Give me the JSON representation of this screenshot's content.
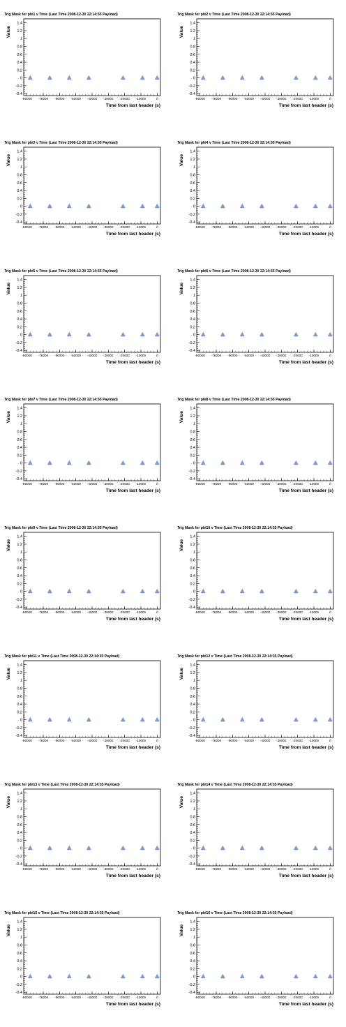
{
  "chart_data": [
    {
      "type": "scatter",
      "title": "Trig Mask for phi1 v Time (Last Time 2008-12-30 22:14:35 Payload)",
      "xlabel": "Time from last header (s)",
      "ylabel": "Value",
      "x": [
        -78000,
        -66000,
        -54000,
        -42000,
        -21000,
        -9000,
        0
      ],
      "y": [
        0,
        0,
        0,
        0,
        0,
        0,
        0
      ],
      "xlim": [
        -82000,
        2000
      ],
      "ylim": [
        -0.45,
        1.5
      ],
      "xticks": [
        "-80000",
        "-70000",
        "-60000",
        "-50000",
        "-40000",
        "-30000",
        "-20000",
        "-10000",
        "0"
      ],
      "yticks": [
        "-0.4",
        "-0.2",
        "0",
        "0.2",
        "0.4",
        "0.6",
        "0.8",
        "1",
        "1.2",
        "1.4"
      ],
      "marker": "triangle",
      "color": "#7f98cf"
    },
    {
      "type": "scatter",
      "title": "Trig Mask for phi2 v Time (Last Time 2008-12-30 22:14:35 Payload)",
      "xlabel": "Time from last header (s)",
      "ylabel": "Value",
      "x": [
        -78000,
        -66000,
        -54000,
        -42000,
        -21000,
        -9000,
        0
      ],
      "y": [
        0,
        0,
        0,
        0,
        0,
        0,
        0
      ],
      "xlim": [
        -82000,
        2000
      ],
      "ylim": [
        -0.45,
        1.5
      ],
      "xticks": [
        "-80000",
        "-70000",
        "-60000",
        "-50000",
        "-40000",
        "-30000",
        "-20000",
        "-10000",
        "0"
      ],
      "yticks": [
        "-0.4",
        "-0.2",
        "0",
        "0.2",
        "0.4",
        "0.6",
        "0.8",
        "1",
        "1.2",
        "1.4"
      ],
      "marker": "triangle",
      "color": "#7f98cf"
    },
    {
      "type": "scatter",
      "title": "Trig Mask for phi3 v Time (Last Time 2008-12-30 22:14:35 Payload)",
      "xlabel": "Time from last header (s)",
      "ylabel": "Value",
      "x": [
        -78000,
        -66000,
        -54000,
        -42000,
        -21000,
        -9000,
        0
      ],
      "y": [
        0,
        0,
        0,
        0,
        0,
        0,
        0
      ],
      "xlim": [
        -82000,
        2000
      ],
      "ylim": [
        -0.45,
        1.5
      ],
      "xticks": [
        "-80000",
        "-70000",
        "-60000",
        "-50000",
        "-40000",
        "-30000",
        "-20000",
        "-10000",
        "0"
      ],
      "yticks": [
        "-0.4",
        "-0.2",
        "0",
        "0.2",
        "0.4",
        "0.6",
        "0.8",
        "1",
        "1.2",
        "1.4"
      ],
      "marker": "triangle",
      "color": "#7f98cf"
    },
    {
      "type": "scatter",
      "title": "Trig Mask for phi4 v Time (Last Time 2008-12-30 22:14:35 Payload)",
      "xlabel": "Time from last header (s)",
      "ylabel": "Value",
      "x": [
        -78000,
        -66000,
        -54000,
        -42000,
        -21000,
        -9000,
        0
      ],
      "y": [
        0,
        0,
        0,
        0,
        0,
        0,
        0
      ],
      "xlim": [
        -82000,
        2000
      ],
      "ylim": [
        -0.45,
        1.5
      ],
      "xticks": [
        "-80000",
        "-70000",
        "-60000",
        "-50000",
        "-40000",
        "-30000",
        "-20000",
        "-10000",
        "0"
      ],
      "yticks": [
        "-0.4",
        "-0.2",
        "0",
        "0.2",
        "0.4",
        "0.6",
        "0.8",
        "1",
        "1.2",
        "1.4"
      ],
      "marker": "triangle",
      "color": "#7f98cf"
    },
    {
      "type": "scatter",
      "title": "Trig Mask for phi5 v Time (Last Time 2008-12-30 22:14:35 Payload)",
      "xlabel": "Time from last header (s)",
      "ylabel": "Value",
      "x": [
        -78000,
        -66000,
        -54000,
        -42000,
        -21000,
        -9000,
        0
      ],
      "y": [
        0,
        0,
        0,
        0,
        0,
        0,
        0
      ],
      "xlim": [
        -82000,
        2000
      ],
      "ylim": [
        -0.45,
        1.5
      ],
      "xticks": [
        "-80000",
        "-70000",
        "-60000",
        "-50000",
        "-40000",
        "-30000",
        "-20000",
        "-10000",
        "0"
      ],
      "yticks": [
        "-0.4",
        "-0.2",
        "0",
        "0.2",
        "0.4",
        "0.6",
        "0.8",
        "1",
        "1.2",
        "1.4"
      ],
      "marker": "triangle",
      "color": "#7f98cf"
    },
    {
      "type": "scatter",
      "title": "Trig Mask for phi6 v Time (Last Time 2008-12-30 22:14:35 Payload)",
      "xlabel": "Time from last header (s)",
      "ylabel": "Value",
      "x": [
        -78000,
        -66000,
        -54000,
        -42000,
        -21000,
        -9000,
        0
      ],
      "y": [
        0,
        0,
        0,
        0,
        0,
        0,
        0
      ],
      "xlim": [
        -82000,
        2000
      ],
      "ylim": [
        -0.45,
        1.5
      ],
      "xticks": [
        "-80000",
        "-70000",
        "-60000",
        "-50000",
        "-40000",
        "-30000",
        "-20000",
        "-10000",
        "0"
      ],
      "yticks": [
        "-0.4",
        "-0.2",
        "0",
        "0.2",
        "0.4",
        "0.6",
        "0.8",
        "1",
        "1.2",
        "1.4"
      ],
      "marker": "triangle",
      "color": "#7f98cf"
    },
    {
      "type": "scatter",
      "title": "Trig Mask for phi7 v Time (Last Time 2008-12-30 22:14:35 Payload)",
      "xlabel": "Time from last header (s)",
      "ylabel": "Value",
      "x": [
        -78000,
        -66000,
        -54000,
        -42000,
        -21000,
        -9000,
        0
      ],
      "y": [
        0,
        0,
        0,
        0,
        0,
        0,
        0
      ],
      "xlim": [
        -82000,
        2000
      ],
      "ylim": [
        -0.45,
        1.5
      ],
      "xticks": [
        "-80000",
        "-70000",
        "-60000",
        "-50000",
        "-40000",
        "-30000",
        "-20000",
        "-10000",
        "0"
      ],
      "yticks": [
        "-0.4",
        "-0.2",
        "0",
        "0.2",
        "0.4",
        "0.6",
        "0.8",
        "1",
        "1.2",
        "1.4"
      ],
      "marker": "triangle",
      "color": "#7f98cf"
    },
    {
      "type": "scatter",
      "title": "Trig Mask for phi8 v Time (Last Time 2008-12-30 22:14:35 Payload)",
      "xlabel": "Time from last header (s)",
      "ylabel": "Value",
      "x": [
        -78000,
        -66000,
        -54000,
        -42000,
        -21000,
        -9000,
        0
      ],
      "y": [
        0,
        0,
        0,
        0,
        0,
        0,
        0
      ],
      "xlim": [
        -82000,
        2000
      ],
      "ylim": [
        -0.45,
        1.5
      ],
      "xticks": [
        "-80000",
        "-70000",
        "-60000",
        "-50000",
        "-40000",
        "-30000",
        "-20000",
        "-10000",
        "0"
      ],
      "yticks": [
        "-0.4",
        "-0.2",
        "0",
        "0.2",
        "0.4",
        "0.6",
        "0.8",
        "1",
        "1.2",
        "1.4"
      ],
      "marker": "triangle",
      "color": "#7f98cf"
    },
    {
      "type": "scatter",
      "title": "Trig Mask for phi9 v Time (Last Time 2008-12-30 22:14:35 Payload)",
      "xlabel": "Time from last header (s)",
      "ylabel": "Value",
      "x": [
        -78000,
        -66000,
        -54000,
        -42000,
        -21000,
        -9000,
        0
      ],
      "y": [
        0,
        0,
        0,
        0,
        0,
        0,
        0
      ],
      "xlim": [
        -82000,
        2000
      ],
      "ylim": [
        -0.45,
        1.5
      ],
      "xticks": [
        "-80000",
        "-70000",
        "-60000",
        "-50000",
        "-40000",
        "-30000",
        "-20000",
        "-10000",
        "0"
      ],
      "yticks": [
        "-0.4",
        "-0.2",
        "0",
        "0.2",
        "0.4",
        "0.6",
        "0.8",
        "1",
        "1.2",
        "1.4"
      ],
      "marker": "triangle",
      "color": "#7f98cf"
    },
    {
      "type": "scatter",
      "title": "Trig Mask for phi10 v Time (Last Time 2008-12-30 22:14:35 Payload)",
      "xlabel": "Time from last header (s)",
      "ylabel": "Value",
      "x": [
        -78000,
        -66000,
        -54000,
        -42000,
        -21000,
        -9000,
        0
      ],
      "y": [
        0,
        0,
        0,
        0,
        0,
        0,
        0
      ],
      "xlim": [
        -82000,
        2000
      ],
      "ylim": [
        -0.45,
        1.5
      ],
      "xticks": [
        "-80000",
        "-70000",
        "-60000",
        "-50000",
        "-40000",
        "-30000",
        "-20000",
        "-10000",
        "0"
      ],
      "yticks": [
        "-0.4",
        "-0.2",
        "0",
        "0.2",
        "0.4",
        "0.6",
        "0.8",
        "1",
        "1.2",
        "1.4"
      ],
      "marker": "triangle",
      "color": "#7f98cf"
    },
    {
      "type": "scatter",
      "title": "Trig Mask for phi11 v Time (Last Time 2008-12-30 22:14:35 Payload)",
      "xlabel": "Time from last header (s)",
      "ylabel": "Value",
      "x": [
        -78000,
        -66000,
        -54000,
        -42000,
        -21000,
        -9000,
        0
      ],
      "y": [
        0,
        0,
        0,
        0,
        0,
        0,
        0
      ],
      "xlim": [
        -82000,
        2000
      ],
      "ylim": [
        -0.45,
        1.5
      ],
      "xticks": [
        "-80000",
        "-70000",
        "-60000",
        "-50000",
        "-40000",
        "-30000",
        "-20000",
        "-10000",
        "0"
      ],
      "yticks": [
        "-0.4",
        "-0.2",
        "0",
        "0.2",
        "0.4",
        "0.6",
        "0.8",
        "1",
        "1.2",
        "1.4"
      ],
      "marker": "triangle",
      "color": "#7f98cf"
    },
    {
      "type": "scatter",
      "title": "Trig Mask for phi12 v Time (Last Time 2008-12-30 22:14:35 Payload)",
      "xlabel": "Time from last header (s)",
      "ylabel": "Value",
      "x": [
        -78000,
        -66000,
        -54000,
        -42000,
        -21000,
        -9000,
        0
      ],
      "y": [
        0,
        0,
        0,
        0,
        0,
        0,
        0
      ],
      "xlim": [
        -82000,
        2000
      ],
      "ylim": [
        -0.45,
        1.5
      ],
      "xticks": [
        "-80000",
        "-70000",
        "-60000",
        "-50000",
        "-40000",
        "-30000",
        "-20000",
        "-10000",
        "0"
      ],
      "yticks": [
        "-0.4",
        "-0.2",
        "0",
        "0.2",
        "0.4",
        "0.6",
        "0.8",
        "1",
        "1.2",
        "1.4"
      ],
      "marker": "triangle",
      "color": "#7f98cf"
    },
    {
      "type": "scatter",
      "title": "Trig Mask for phi13 v Time (Last Time 2008-12-30 22:14:35 Payload)",
      "xlabel": "Time from last header (s)",
      "ylabel": "Value",
      "x": [
        -78000,
        -66000,
        -54000,
        -42000,
        -21000,
        -9000,
        0
      ],
      "y": [
        0,
        0,
        0,
        0,
        0,
        0,
        0
      ],
      "xlim": [
        -82000,
        2000
      ],
      "ylim": [
        -0.45,
        1.5
      ],
      "xticks": [
        "-80000",
        "-70000",
        "-60000",
        "-50000",
        "-40000",
        "-30000",
        "-20000",
        "-10000",
        "0"
      ],
      "yticks": [
        "-0.4",
        "-0.2",
        "0",
        "0.2",
        "0.4",
        "0.6",
        "0.8",
        "1",
        "1.2",
        "1.4"
      ],
      "marker": "triangle",
      "color": "#7f98cf"
    },
    {
      "type": "scatter",
      "title": "Trig Mask for phi14 v Time (Last Time 2008-12-30 22:14:35 Payload)",
      "xlabel": "Time from last header (s)",
      "ylabel": "Value",
      "x": [
        -78000,
        -66000,
        -54000,
        -42000,
        -21000,
        -9000,
        0
      ],
      "y": [
        0,
        0,
        0,
        0,
        0,
        0,
        0
      ],
      "xlim": [
        -82000,
        2000
      ],
      "ylim": [
        -0.45,
        1.5
      ],
      "xticks": [
        "-80000",
        "-70000",
        "-60000",
        "-50000",
        "-40000",
        "-30000",
        "-20000",
        "-10000",
        "0"
      ],
      "yticks": [
        "-0.4",
        "-0.2",
        "0",
        "0.2",
        "0.4",
        "0.6",
        "0.8",
        "1",
        "1.2",
        "1.4"
      ],
      "marker": "triangle",
      "color": "#7f98cf"
    },
    {
      "type": "scatter",
      "title": "Trig Mask for phi15 v Time (Last Time 2008-12-30 22:14:35 Payload)",
      "xlabel": "Time from last header (s)",
      "ylabel": "Value",
      "x": [
        -78000,
        -66000,
        -54000,
        -42000,
        -21000,
        -9000,
        0
      ],
      "y": [
        0,
        0,
        0,
        0,
        0,
        0,
        0
      ],
      "xlim": [
        -82000,
        2000
      ],
      "ylim": [
        -0.45,
        1.5
      ],
      "xticks": [
        "-80000",
        "-70000",
        "-60000",
        "-50000",
        "-40000",
        "-30000",
        "-20000",
        "-10000",
        "0"
      ],
      "yticks": [
        "-0.4",
        "-0.2",
        "0",
        "0.2",
        "0.4",
        "0.6",
        "0.8",
        "1",
        "1.2",
        "1.4"
      ],
      "marker": "triangle",
      "color": "#7f98cf"
    },
    {
      "type": "scatter",
      "title": "Trig Mask for phi16 v Time (Last Time 2008-12-30 22:14:35 Payload)",
      "xlabel": "Time from last header (s)",
      "ylabel": "Value",
      "x": [
        -78000,
        -66000,
        -54000,
        -42000,
        -21000,
        -9000,
        0
      ],
      "y": [
        0,
        0,
        0,
        0,
        0,
        0,
        0
      ],
      "xlim": [
        -82000,
        2000
      ],
      "ylim": [
        -0.45,
        1.5
      ],
      "xticks": [
        "-80000",
        "-70000",
        "-60000",
        "-50000",
        "-40000",
        "-30000",
        "-20000",
        "-10000",
        "0"
      ],
      "yticks": [
        "-0.4",
        "-0.2",
        "0",
        "0.2",
        "0.4",
        "0.6",
        "0.8",
        "1",
        "1.2",
        "1.4"
      ],
      "marker": "triangle",
      "color": "#7f98cf"
    }
  ]
}
